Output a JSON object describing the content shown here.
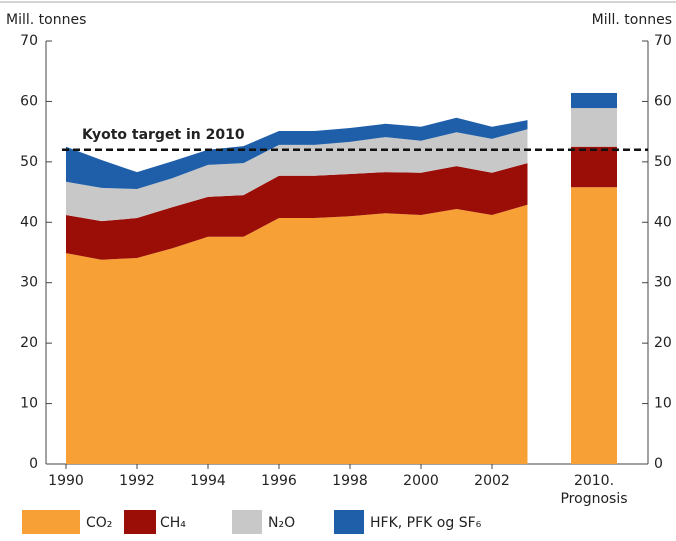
{
  "chart_data": {
    "type": "stacked_area",
    "y_label_left": "Mill. tonnes",
    "y_label_right": "Mill. tonnes",
    "x": [
      1990,
      1991,
      1992,
      1993,
      1994,
      1995,
      1996,
      1997,
      1998,
      1999,
      2000,
      2001,
      2002,
      2003
    ],
    "xticks": [
      1990,
      1992,
      1994,
      1996,
      1998,
      2000,
      2002
    ],
    "xlim": [
      1990,
      2003
    ],
    "ylim": [
      0,
      70
    ],
    "yticks": [
      0,
      10,
      20,
      30,
      40,
      50,
      60,
      70
    ],
    "y2lim": [
      0,
      70
    ],
    "y2ticks": [
      0,
      10,
      20,
      30,
      40,
      50,
      60,
      70
    ],
    "series": [
      {
        "name": "CO₂",
        "color": "#f7a035",
        "values": [
          34.9,
          33.8,
          34.1,
          35.7,
          37.6,
          37.6,
          40.7,
          40.7,
          41.0,
          41.5,
          41.2,
          42.2,
          41.2,
          42.9
        ],
        "prognosis_value": 45.8
      },
      {
        "name": "CH₄",
        "color": "#9b0d07",
        "values": [
          6.3,
          6.4,
          6.6,
          6.8,
          6.6,
          6.9,
          7.0,
          7.0,
          7.0,
          6.8,
          7.0,
          7.1,
          7.0,
          6.9
        ],
        "prognosis_value": 6.7
      },
      {
        "name": "N₂O",
        "color": "#c8c8c8",
        "values": [
          5.5,
          5.5,
          4.8,
          4.8,
          5.3,
          5.3,
          5.1,
          5.1,
          5.3,
          5.8,
          5.3,
          5.6,
          5.6,
          5.6
        ],
        "prognosis_value": 6.4
      },
      {
        "name": "HFK, PFK og SF₆",
        "color": "#1f5faa",
        "values": [
          5.8,
          4.6,
          2.8,
          2.8,
          2.5,
          2.8,
          2.3,
          2.3,
          2.3,
          2.2,
          2.3,
          2.4,
          2.0,
          1.5
        ],
        "prognosis_value": 2.5
      }
    ],
    "prognosis_label": [
      "2010.",
      "Prognosis"
    ],
    "target": {
      "label": "Kyoto target in 2010",
      "value": 52
    }
  }
}
